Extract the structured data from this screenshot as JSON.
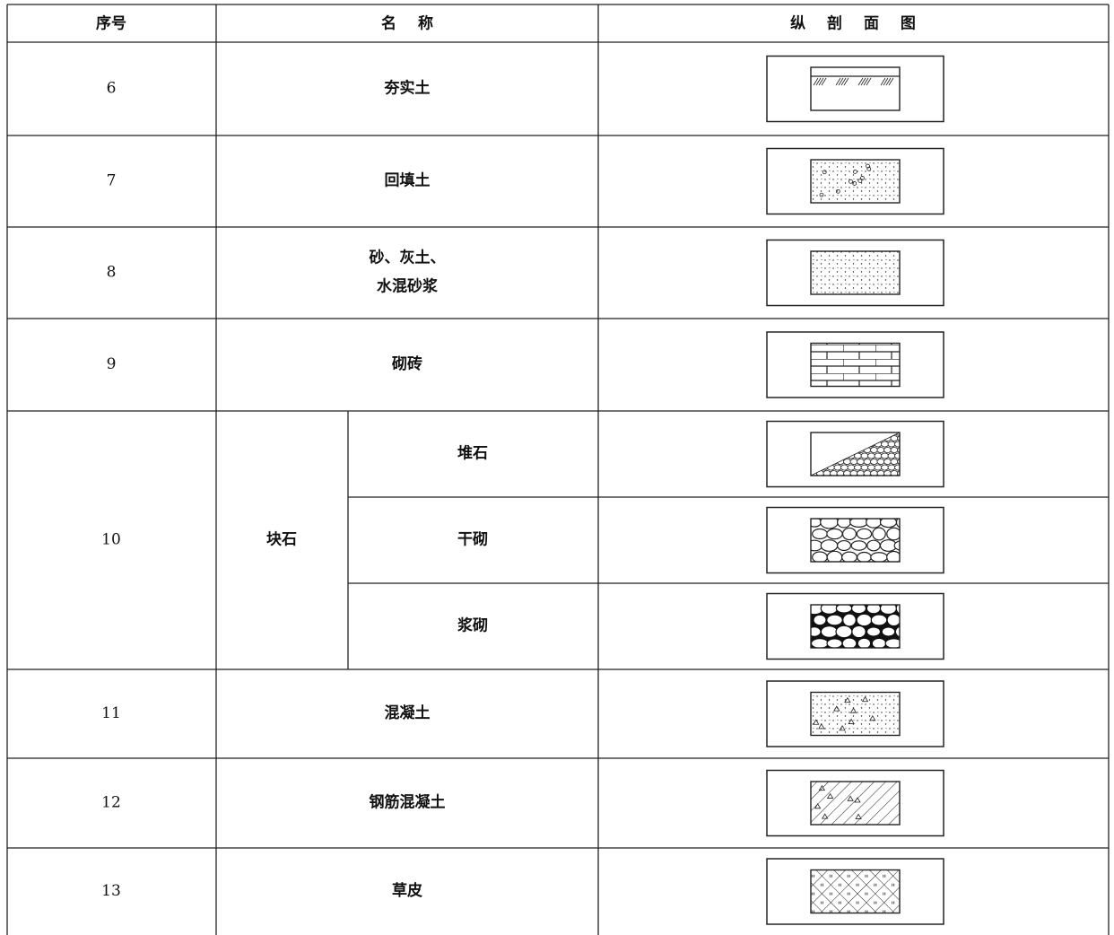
{
  "header": [
    "序号",
    "名 称",
    "纵 剖 面 图"
  ],
  "rows": [
    {
      "no": "6",
      "name": "夯实土"
    },
    {
      "no": "7",
      "name": "回填土"
    },
    {
      "no": "8",
      "name": [
        "砂、灰土、",
        "水混砂浆"
      ]
    },
    {
      "no": "9",
      "name": "砌砖"
    },
    {
      "no": "10",
      "name": "块石",
      "sub": [
        "堆石",
        "干砌",
        "浆砌"
      ]
    },
    {
      "no": "11",
      "name": "混凝土"
    },
    {
      "no": "12",
      "name": "钢筋混凝土"
    },
    {
      "no": "13",
      "name": "草皮"
    }
  ]
}
